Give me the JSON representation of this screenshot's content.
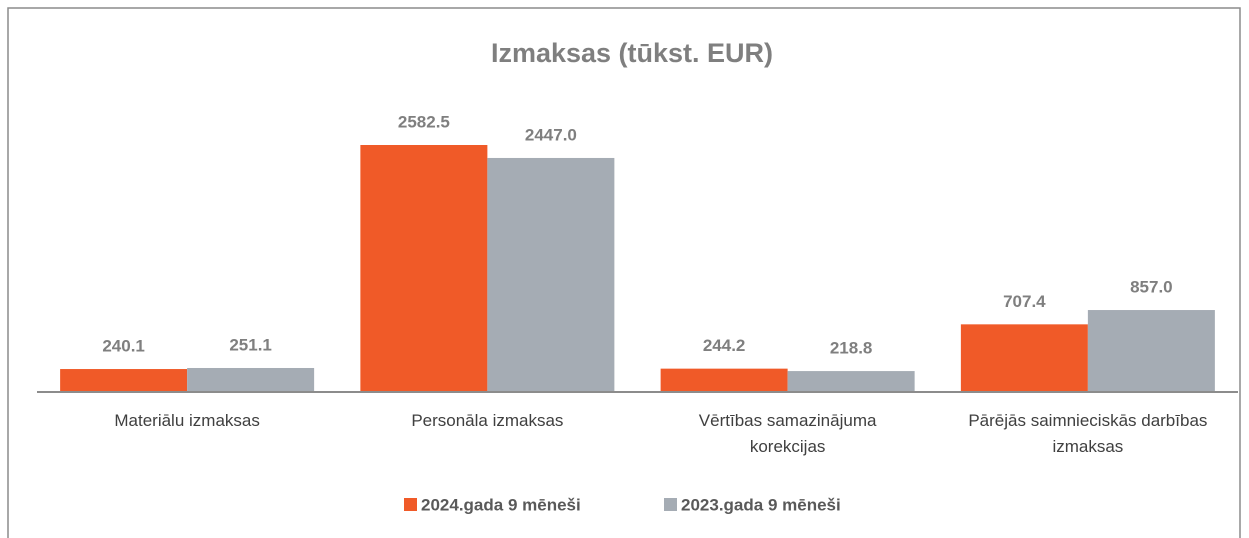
{
  "chart_data": {
    "type": "bar",
    "title": "Izmaksas (tūkst. EUR)",
    "categories": [
      "Materiālu izmaksas",
      "Personāla izmaksas",
      "Vērtības samazinājuma korekcijas",
      "Pārējās saimnieciskās darbības izmaksas"
    ],
    "series": [
      {
        "name": "2024.gada 9 mēneši",
        "color": "#f05a28",
        "values": [
          240.1,
          2582.5,
          244.2,
          707.4
        ],
        "value_labels": [
          "240.1",
          "2582.5",
          "244.2",
          "707.4"
        ]
      },
      {
        "name": "2023.gada 9 mēneši",
        "color": "#a5acb4",
        "values": [
          251.1,
          2447,
          218.8,
          857
        ],
        "value_labels": [
          "251.1",
          "2447.0",
          "218.8",
          "857.0"
        ]
      }
    ],
    "legend": "bottom"
  }
}
